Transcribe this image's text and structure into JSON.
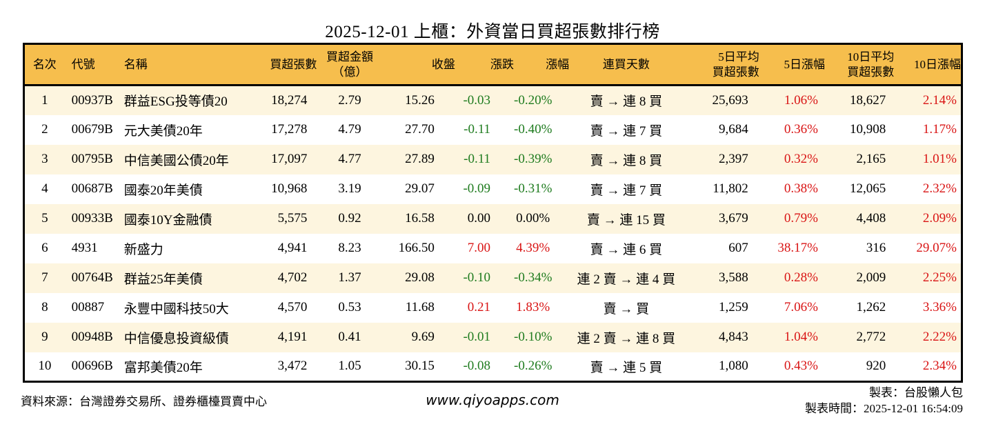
{
  "title": "2025-12-01 上櫃：外資當日買超張數排行榜",
  "colors": {
    "up": "#d91414",
    "down": "#1e7b1e",
    "flat": "#000000",
    "header_bg": "#f6be4d",
    "row_alt_bg": "#fdf5df",
    "row_bg": "#ffffff",
    "border": "#000000"
  },
  "table": {
    "columns": [
      {
        "key": "rank",
        "label": "名次"
      },
      {
        "key": "code",
        "label": "代號"
      },
      {
        "key": "name",
        "label": "名稱"
      },
      {
        "key": "net_buy",
        "label": "買超張數"
      },
      {
        "key": "amount",
        "label": "買超金額\n（億）"
      },
      {
        "key": "close",
        "label": "收盤"
      },
      {
        "key": "change",
        "label": "漲跌"
      },
      {
        "key": "change_pct",
        "label": "漲幅"
      },
      {
        "key": "streak",
        "label": "連買天數"
      },
      {
        "key": "avg5",
        "label": "5日平均\n買超張數"
      },
      {
        "key": "chg5",
        "label": "5日漲幅"
      },
      {
        "key": "avg10",
        "label": "10日平均\n買超張數"
      },
      {
        "key": "chg10",
        "label": "10日漲幅"
      }
    ],
    "colored_columns": [
      "change",
      "change_pct",
      "chg5",
      "chg10"
    ],
    "rows": [
      {
        "rank": "1",
        "code": "00937B",
        "name": "群益ESG投等債20",
        "net_buy": "18,274",
        "amount": "2.79",
        "close": "15.26",
        "change": "-0.03",
        "change_pct": "-0.20%",
        "streak": "賣 → 連 8 買",
        "avg5": "25,693",
        "chg5": "1.06%",
        "avg10": "18,627",
        "chg10": "2.14%"
      },
      {
        "rank": "2",
        "code": "00679B",
        "name": "元大美債20年",
        "net_buy": "17,278",
        "amount": "4.79",
        "close": "27.70",
        "change": "-0.11",
        "change_pct": "-0.40%",
        "streak": "賣 → 連 7 買",
        "avg5": "9,684",
        "chg5": "0.36%",
        "avg10": "10,908",
        "chg10": "1.17%"
      },
      {
        "rank": "3",
        "code": "00795B",
        "name": "中信美國公債20年",
        "net_buy": "17,097",
        "amount": "4.77",
        "close": "27.89",
        "change": "-0.11",
        "change_pct": "-0.39%",
        "streak": "賣 → 連 8 買",
        "avg5": "2,397",
        "chg5": "0.32%",
        "avg10": "2,165",
        "chg10": "1.01%"
      },
      {
        "rank": "4",
        "code": "00687B",
        "name": "國泰20年美債",
        "net_buy": "10,968",
        "amount": "3.19",
        "close": "29.07",
        "change": "-0.09",
        "change_pct": "-0.31%",
        "streak": "賣 → 連 7 買",
        "avg5": "11,802",
        "chg5": "0.38%",
        "avg10": "12,065",
        "chg10": "2.32%"
      },
      {
        "rank": "5",
        "code": "00933B",
        "name": "國泰10Y金融債",
        "net_buy": "5,575",
        "amount": "0.92",
        "close": "16.58",
        "change": "0.00",
        "change_pct": "0.00%",
        "streak": "賣 → 連 15 買",
        "avg5": "3,679",
        "chg5": "0.79%",
        "avg10": "4,408",
        "chg10": "2.09%"
      },
      {
        "rank": "6",
        "code": "4931",
        "name": "新盛力",
        "net_buy": "4,941",
        "amount": "8.23",
        "close": "166.50",
        "change": "7.00",
        "change_pct": "4.39%",
        "streak": "賣 → 連 6 買",
        "avg5": "607",
        "chg5": "38.17%",
        "avg10": "316",
        "chg10": "29.07%"
      },
      {
        "rank": "7",
        "code": "00764B",
        "name": "群益25年美債",
        "net_buy": "4,702",
        "amount": "1.37",
        "close": "29.08",
        "change": "-0.10",
        "change_pct": "-0.34%",
        "streak": "連 2 賣 → 連 4 買",
        "avg5": "3,588",
        "chg5": "0.28%",
        "avg10": "2,009",
        "chg10": "2.25%"
      },
      {
        "rank": "8",
        "code": "00887",
        "name": "永豐中國科技50大",
        "net_buy": "4,570",
        "amount": "0.53",
        "close": "11.68",
        "change": "0.21",
        "change_pct": "1.83%",
        "streak": "賣 → 買",
        "avg5": "1,259",
        "chg5": "7.06%",
        "avg10": "1,262",
        "chg10": "3.36%"
      },
      {
        "rank": "9",
        "code": "00948B",
        "name": "中信優息投資級債",
        "net_buy": "4,191",
        "amount": "0.41",
        "close": "9.69",
        "change": "-0.01",
        "change_pct": "-0.10%",
        "streak": "連 2 賣 → 連 8 買",
        "avg5": "4,843",
        "chg5": "1.04%",
        "avg10": "2,772",
        "chg10": "2.22%"
      },
      {
        "rank": "10",
        "code": "00696B",
        "name": "富邦美債20年",
        "net_buy": "3,472",
        "amount": "1.05",
        "close": "30.15",
        "change": "-0.08",
        "change_pct": "-0.26%",
        "streak": "賣 → 連 5 買",
        "avg5": "1,080",
        "chg5": "0.43%",
        "avg10": "920",
        "chg10": "2.34%"
      }
    ]
  },
  "footer": {
    "source": "資料來源：台灣證券交易所、證券櫃檯買賣中心",
    "site": "www.qiyoapps.com",
    "credit": "製表：台股懶人包",
    "timestamp": "製表時間：2025-12-01 16:54:09"
  }
}
